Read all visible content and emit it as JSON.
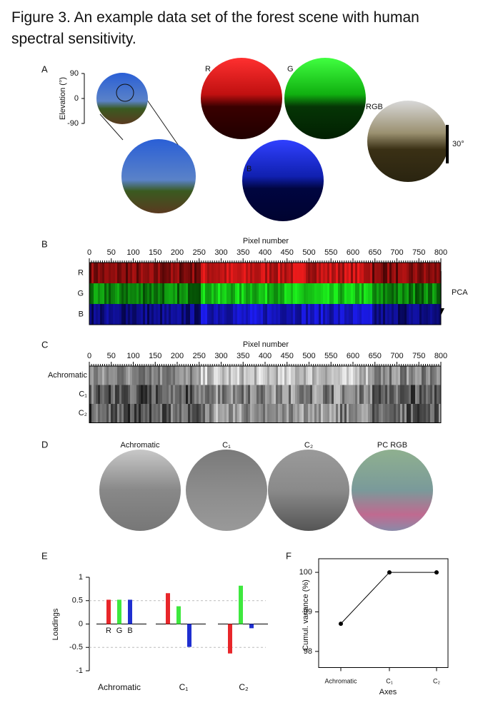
{
  "title": "Figure 3. An example data set of the forest scene with human spectral sensitivity.",
  "panel_a": {
    "label": "A",
    "ytitle": "Elevation (°)",
    "ylim": [
      -90,
      90
    ],
    "yticks": [
      90,
      0,
      -90
    ],
    "channels": [
      "R",
      "G",
      "B",
      "RGB"
    ],
    "scale_bar": "30°"
  },
  "panel_b": {
    "label": "B",
    "xtitle": "Pixel number",
    "xlim": [
      0,
      800
    ],
    "xticks": [
      0,
      50,
      100,
      150,
      200,
      250,
      300,
      350,
      400,
      450,
      500,
      550,
      600,
      650,
      700,
      750,
      800
    ],
    "rows": [
      "R",
      "G",
      "B"
    ],
    "arrow": "PCA"
  },
  "panel_c": {
    "label": "C",
    "xtitle": "Pixel number",
    "xlim": [
      0,
      800
    ],
    "xticks": [
      0,
      50,
      100,
      150,
      200,
      250,
      300,
      350,
      400,
      450,
      500,
      550,
      600,
      650,
      700,
      750,
      800
    ],
    "rows": [
      "Achromatic",
      "C₁",
      "C₂"
    ]
  },
  "panel_d": {
    "label": "D",
    "images": [
      "Achromatic",
      "C₁",
      "C₂",
      "PC RGB"
    ]
  },
  "chart_data": [
    {
      "type": "bar",
      "label": "E",
      "ylabel": "Loadings",
      "categories": [
        "Achromatic",
        "C₁",
        "C₂"
      ],
      "series": [
        {
          "name": "R",
          "color": "#e8262a",
          "values": [
            0.52,
            0.66,
            -0.63
          ]
        },
        {
          "name": "G",
          "color": "#3ee83e",
          "values": [
            0.52,
            0.38,
            0.82
          ]
        },
        {
          "name": "B",
          "color": "#1f2fd0",
          "values": [
            0.52,
            -0.49,
            -0.09
          ]
        }
      ],
      "ylim": [
        -1,
        1
      ],
      "yticks": [
        -1,
        -0.5,
        0,
        0.5,
        1
      ],
      "grid": true
    },
    {
      "type": "line",
      "label": "F",
      "xlabel": "Axes",
      "ylabel": "Cumul. variance (%)",
      "categories": [
        "Achromatic",
        "C₁",
        "C₂"
      ],
      "values": [
        98.7,
        100,
        100
      ],
      "color": "#000000",
      "ylim": [
        97.7,
        100.2
      ],
      "yticks": [
        98,
        99,
        100
      ]
    }
  ]
}
